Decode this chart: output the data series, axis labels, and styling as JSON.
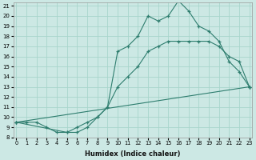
{
  "xlabel": "Humidex (Indice chaleur)",
  "bg_color": "#cce8e4",
  "grid_color": "#a8d5cc",
  "line_color": "#2e7d6e",
  "line1_x": [
    0,
    1,
    2,
    3,
    4,
    5,
    6,
    7,
    8,
    9,
    10,
    11,
    12,
    13,
    14,
    15,
    16,
    17,
    18,
    19,
    20,
    21,
    22,
    23
  ],
  "line1_y": [
    9.5,
    9.5,
    9.5,
    9.0,
    8.5,
    8.5,
    9.0,
    9.5,
    10.0,
    11.0,
    16.5,
    17.0,
    18.0,
    20.0,
    19.5,
    20.0,
    21.5,
    20.5,
    19.0,
    18.5,
    17.5,
    15.5,
    14.5,
    13.0
  ],
  "line2_x": [
    0,
    5,
    6,
    7,
    8,
    9,
    10,
    11,
    12,
    13,
    14,
    15,
    16,
    17,
    18,
    19,
    20,
    21,
    22,
    23
  ],
  "line2_y": [
    9.5,
    8.5,
    8.5,
    9.0,
    10.0,
    11.0,
    13.0,
    14.0,
    15.0,
    16.5,
    17.0,
    17.5,
    17.5,
    17.5,
    17.5,
    17.5,
    17.0,
    16.0,
    15.5,
    13.0
  ],
  "line3_x": [
    0,
    23
  ],
  "line3_y": [
    9.5,
    13.0
  ],
  "xmin": 0,
  "xmax": 23,
  "ymin": 8,
  "ymax": 21
}
